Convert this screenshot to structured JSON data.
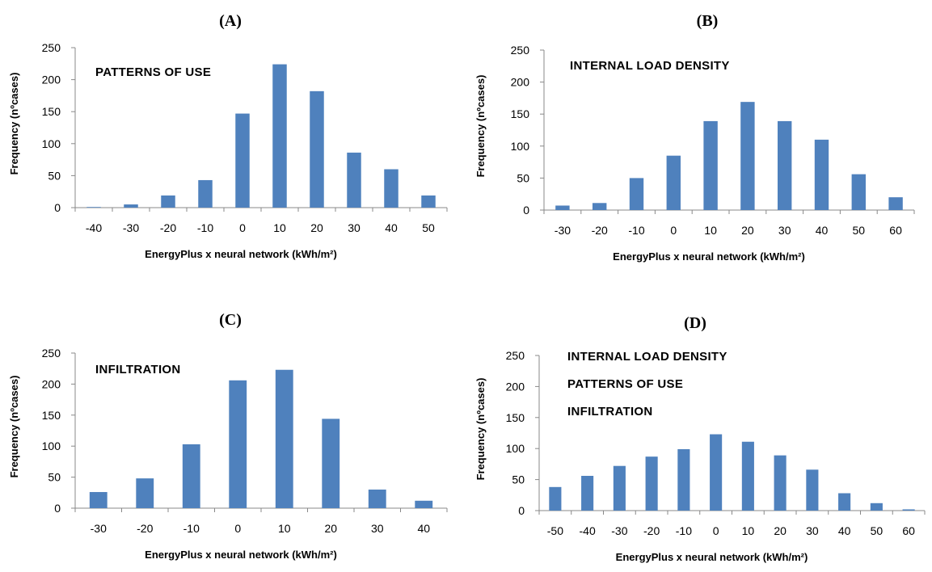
{
  "chart_data": [
    {
      "type": "bar",
      "panel_label": "(A)",
      "annotations": [
        "PATTERNS OF USE"
      ],
      "categories": [
        "-40",
        "-30",
        "-20",
        "-10",
        "0",
        "10",
        "20",
        "30",
        "40",
        "50"
      ],
      "values": [
        1,
        5,
        19,
        43,
        147,
        224,
        182,
        86,
        60,
        19
      ],
      "xlabel": "EnergyPlus x neural network (kWh/m²)",
      "ylabel": "Frequency (nºcases)",
      "yticks": [
        "0",
        "50",
        "100",
        "150",
        "200",
        "250"
      ],
      "ylim": [
        0,
        250
      ],
      "grid": false,
      "color": "#4f81bd"
    },
    {
      "type": "bar",
      "panel_label": "(B)",
      "annotations": [
        "INTERNAL LOAD DENSITY"
      ],
      "categories": [
        "-30",
        "-20",
        "-10",
        "0",
        "10",
        "20",
        "30",
        "40",
        "50",
        "60"
      ],
      "values": [
        7,
        11,
        50,
        85,
        139,
        169,
        139,
        110,
        56,
        20
      ],
      "xlabel": "EnergyPlus x neural network (kWh/m²)",
      "ylabel": "Frequency (nºcases)",
      "yticks": [
        "0",
        "50",
        "100",
        "150",
        "200",
        "250"
      ],
      "ylim": [
        0,
        250
      ],
      "grid": false,
      "color": "#4f81bd"
    },
    {
      "type": "bar",
      "panel_label": "(C)",
      "annotations": [
        "INFILTRATION"
      ],
      "categories": [
        "-30",
        "-20",
        "-10",
        "0",
        "10",
        "20",
        "30",
        "40"
      ],
      "values": [
        26,
        48,
        103,
        206,
        223,
        144,
        30,
        12
      ],
      "xlabel": "EnergyPlus x neural network (kWh/m²)",
      "ylabel": "Frequency (nºcases)",
      "yticks": [
        "0",
        "50",
        "100",
        "150",
        "200",
        "250"
      ],
      "ylim": [
        0,
        250
      ],
      "grid": false,
      "color": "#4f81bd"
    },
    {
      "type": "bar",
      "panel_label": "(D)",
      "annotations": [
        "INTERNAL LOAD DENSITY",
        "PATTERNS OF USE",
        "INFILTRATION"
      ],
      "categories": [
        "-50",
        "-40",
        "-30",
        "-20",
        "-10",
        "0",
        "10",
        "20",
        "30",
        "40",
        "50",
        "60"
      ],
      "values": [
        38,
        56,
        72,
        87,
        99,
        123,
        111,
        89,
        66,
        28,
        12,
        2
      ],
      "xlabel": "EnergyPlus x neural network (kWh/m²)",
      "ylabel": "Frequency (nºcases)",
      "yticks": [
        "0",
        "50",
        "100",
        "150",
        "200",
        "250"
      ],
      "ylim": [
        0,
        250
      ],
      "grid": false,
      "color": "#4f81bd"
    }
  ]
}
